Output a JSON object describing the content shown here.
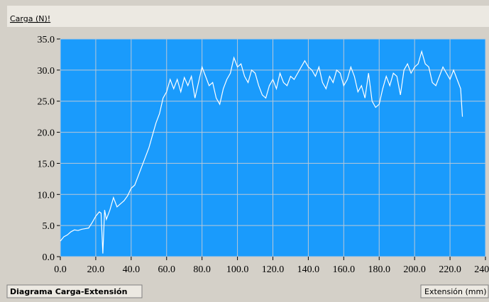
{
  "chart_data": {
    "type": "line",
    "ylabel": "Carga (N)!",
    "caption": "Diagrama Carga-Extensión",
    "xlabel": "Extensión (mm)",
    "x": [
      0,
      2,
      4,
      6,
      8,
      10,
      12,
      14,
      16,
      18,
      20,
      22,
      23,
      24,
      25,
      26,
      28,
      30,
      32,
      34,
      36,
      38,
      40,
      42,
      44,
      46,
      48,
      50,
      52,
      54,
      56,
      58,
      60,
      62,
      64,
      66,
      68,
      70,
      72,
      74,
      76,
      78,
      80,
      82,
      84,
      86,
      88,
      90,
      92,
      94,
      96,
      98,
      100,
      102,
      104,
      106,
      108,
      110,
      112,
      114,
      116,
      118,
      120,
      122,
      124,
      126,
      128,
      130,
      132,
      134,
      136,
      138,
      140,
      142,
      144,
      146,
      148,
      150,
      152,
      154,
      156,
      158,
      160,
      162,
      164,
      166,
      168,
      170,
      172,
      174,
      176,
      178,
      180,
      182,
      184,
      186,
      188,
      190,
      192,
      194,
      196,
      198,
      200,
      202,
      204,
      206,
      208,
      210,
      212,
      214,
      216,
      218,
      220,
      222,
      224,
      226,
      227
    ],
    "values": [
      2.5,
      3.2,
      3.5,
      4.0,
      4.3,
      4.2,
      4.4,
      4.5,
      4.6,
      5.5,
      6.5,
      7.2,
      7.0,
      0.5,
      7.5,
      6.0,
      7.5,
      9.5,
      8.0,
      8.5,
      9.0,
      9.8,
      11.0,
      11.5,
      13.0,
      14.5,
      16.0,
      17.5,
      19.5,
      21.5,
      23.0,
      25.5,
      26.5,
      28.5,
      27.0,
      28.5,
      26.5,
      28.8,
      27.5,
      29.0,
      25.5,
      28.0,
      30.5,
      29.0,
      27.5,
      28.0,
      25.5,
      24.5,
      27.0,
      28.5,
      29.5,
      32.0,
      30.5,
      31.0,
      29.0,
      28.0,
      30.0,
      29.5,
      27.5,
      26.0,
      25.5,
      27.5,
      28.5,
      27.0,
      29.5,
      28.0,
      27.5,
      29.0,
      28.5,
      29.5,
      30.5,
      31.5,
      30.5,
      30.0,
      29.0,
      30.5,
      28.0,
      27.0,
      29.0,
      28.0,
      30.0,
      29.5,
      27.5,
      28.5,
      30.5,
      29.0,
      26.5,
      27.5,
      25.5,
      29.5,
      25.0,
      24.0,
      24.5,
      27.0,
      29.0,
      27.5,
      29.5,
      29.0,
      26.0,
      30.0,
      31.0,
      29.5,
      30.5,
      31.0,
      33.0,
      31.0,
      30.5,
      28.0,
      27.5,
      29.0,
      30.5,
      29.5,
      28.5,
      30.0,
      28.5,
      27.0,
      22.5
    ],
    "color": "#ffffff",
    "background": "#1a9bfc",
    "grid": true,
    "xlim": [
      0,
      240
    ],
    "ylim": [
      0,
      35
    ],
    "xticks": [
      {
        "value": 0,
        "label": "0.0"
      },
      {
        "value": 20,
        "label": "20.0"
      },
      {
        "value": 40,
        "label": "40.0"
      },
      {
        "value": 60,
        "label": "60.0"
      },
      {
        "value": 80,
        "label": "80.0"
      },
      {
        "value": 100,
        "label": "100.0"
      },
      {
        "value": 120,
        "label": "120.0"
      },
      {
        "value": 140,
        "label": "140.0"
      },
      {
        "value": 160,
        "label": "160.0"
      },
      {
        "value": 180,
        "label": "180.0"
      },
      {
        "value": 200,
        "label": "200.0"
      },
      {
        "value": 220,
        "label": "220.0"
      },
      {
        "value": 240,
        "label": "240.0"
      }
    ],
    "yticks": [
      {
        "value": 0,
        "label": "0.0"
      },
      {
        "value": 5,
        "label": "5.0"
      },
      {
        "value": 10,
        "label": "10.0"
      },
      {
        "value": 15,
        "label": "15.0"
      },
      {
        "value": 20,
        "label": "20.0"
      },
      {
        "value": 25,
        "label": "25.0"
      },
      {
        "value": 30,
        "label": "30.0"
      },
      {
        "value": 35,
        "label": "35.0"
      }
    ]
  }
}
